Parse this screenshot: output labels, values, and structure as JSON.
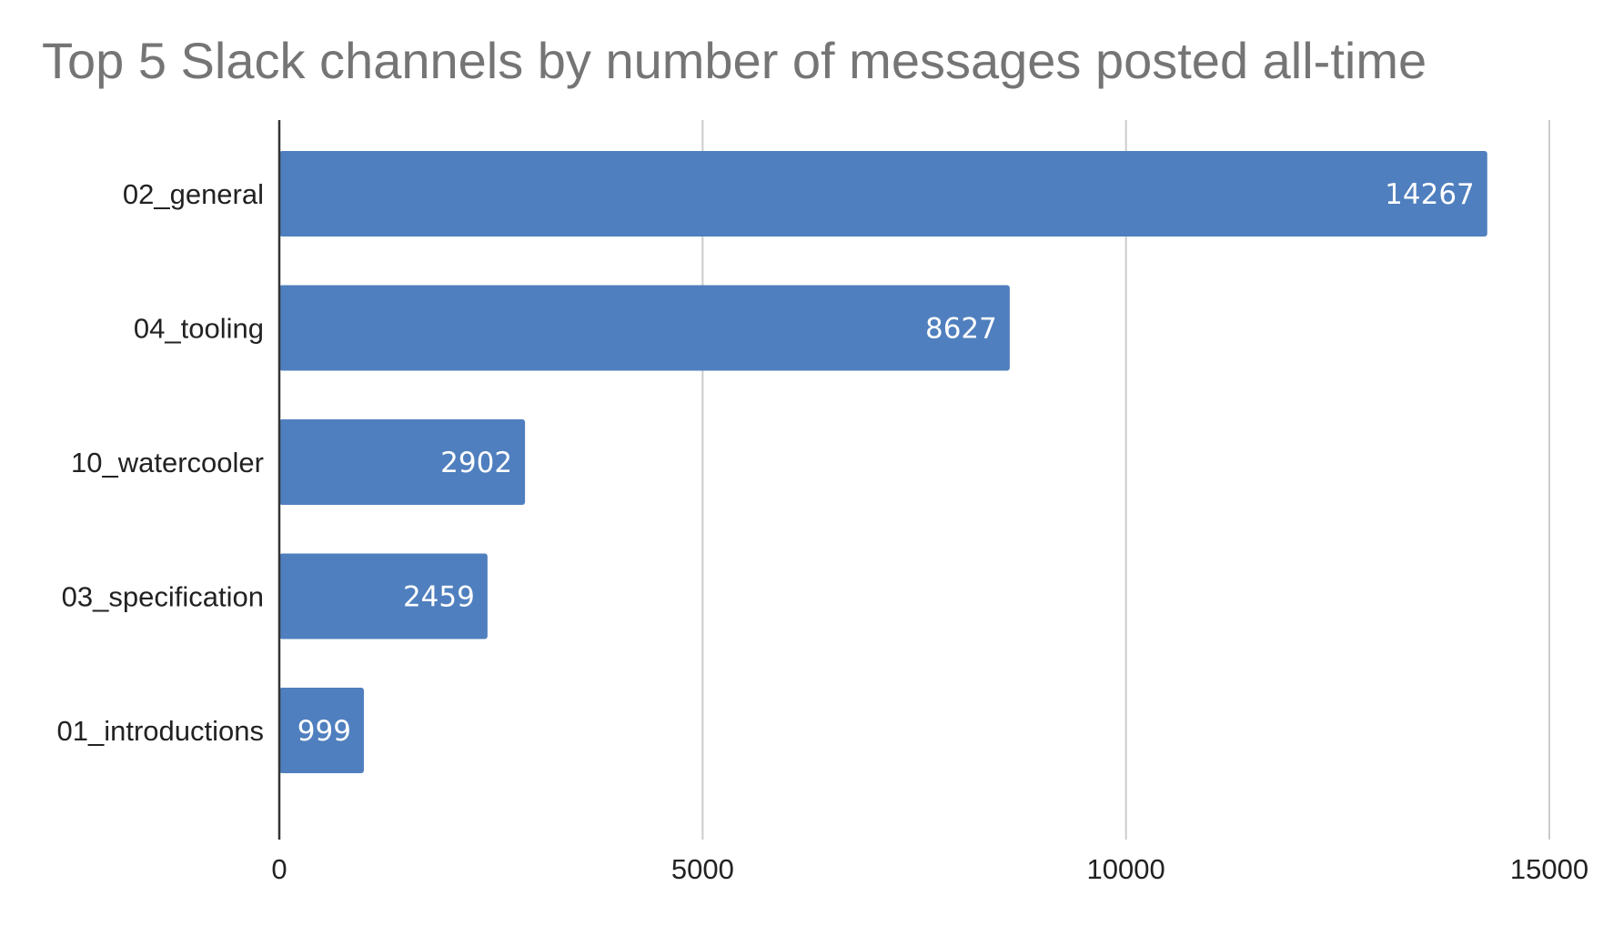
{
  "chart_data": {
    "type": "bar",
    "orientation": "horizontal",
    "title": "Top 5 Slack channels by number of messages posted all-time",
    "xlabel": "",
    "ylabel": "",
    "categories": [
      "02_general",
      "04_tooling",
      "10_watercooler",
      "03_specification",
      "01_introductions"
    ],
    "values": [
      14267,
      8627,
      2902,
      2459,
      999
    ],
    "xlim": [
      0,
      15000
    ],
    "x_ticks": [
      0,
      5000,
      10000,
      15000
    ],
    "x_tick_labels": [
      "0",
      "5000",
      "10000",
      "15000"
    ],
    "data_labels": [
      "14267",
      "8627",
      "2902",
      "2459",
      "999"
    ],
    "grid": true,
    "legend": "none",
    "colors": {
      "bar": "#4f7fbe",
      "title": "#757575",
      "text": "#222222",
      "data_label": "#ffffff",
      "grid": "#cccccc",
      "axis": "#333333"
    }
  }
}
